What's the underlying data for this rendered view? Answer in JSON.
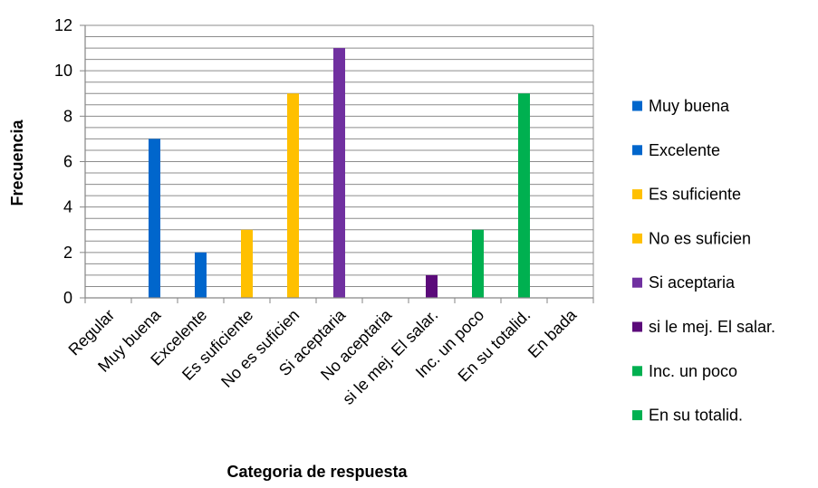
{
  "chart_data": {
    "type": "bar",
    "title": "",
    "xlabel": "Categoria de respuesta",
    "ylabel": "Frecuencia",
    "ylim": [
      0,
      12
    ],
    "y_ticks": [
      0,
      2,
      4,
      6,
      8,
      10,
      12
    ],
    "minor_gridlines": true,
    "legend_position": "right",
    "categories": [
      "Regular",
      "Muy buena",
      "Excelente",
      "Es suficiente",
      "No es suficien",
      "Si aceptaria",
      "No aceptaria",
      "si le mej. El salar.",
      "Inc. un poco",
      "En su totalid.",
      "En bada"
    ],
    "values": [
      0,
      7,
      2,
      3,
      9,
      11,
      0,
      1,
      3,
      9,
      0
    ],
    "bar_colors": [
      "#0066CC",
      "#0066CC",
      "#0066CC",
      "#FFC000",
      "#FFC000",
      "#7030A0",
      "#7030A0",
      "#5B0A7A",
      "#00B050",
      "#00B050",
      "#00B050"
    ],
    "legend": [
      {
        "label": "Muy buena",
        "color": "#0066CC"
      },
      {
        "label": "Excelente",
        "color": "#0066CC"
      },
      {
        "label": "Es suficiente",
        "color": "#FFC000"
      },
      {
        "label": "No es suficien",
        "color": "#FFC000"
      },
      {
        "label": "Si aceptaria",
        "color": "#7030A0"
      },
      {
        "label": "si le mej. El salar.",
        "color": "#5B0A7A"
      },
      {
        "label": "Inc. un poco",
        "color": "#00B050"
      },
      {
        "label": "En su totalid.",
        "color": "#00B050"
      }
    ]
  }
}
